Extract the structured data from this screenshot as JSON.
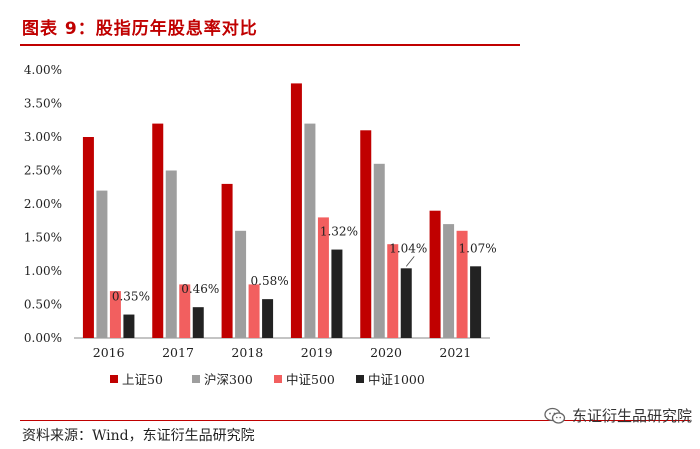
{
  "header": {
    "title": "图表 9：股指历年股息率对比"
  },
  "footer": {
    "source": "资料来源：Wind，东证衍生品研究院"
  },
  "watermark": {
    "text": "东证衍生品研究院",
    "icon": "wechat-icon"
  },
  "colors": {
    "title": "#c00000",
    "s1": "#c00000",
    "s2": "#9e9e9e",
    "s3": "#f25f5f",
    "s4": "#222222"
  },
  "chart_data": {
    "type": "bar",
    "title": "股指历年股息率对比",
    "categories": [
      "2016",
      "2017",
      "2018",
      "2019",
      "2020",
      "2021"
    ],
    "series": [
      {
        "name": "上证50",
        "color": "#c00000",
        "values": [
          3.0,
          3.2,
          2.3,
          3.8,
          3.1,
          1.9
        ]
      },
      {
        "name": "沪深300",
        "color": "#9e9e9e",
        "values": [
          2.2,
          2.5,
          1.6,
          3.2,
          2.6,
          1.7
        ]
      },
      {
        "name": "中证500",
        "color": "#f25f5f",
        "values": [
          0.7,
          0.8,
          0.8,
          1.8,
          1.4,
          1.6
        ]
      },
      {
        "name": "中证1000",
        "color": "#222222",
        "values": [
          0.35,
          0.46,
          0.58,
          1.32,
          1.04,
          1.07
        ]
      }
    ],
    "data_labels": [
      "0.35%",
      "0.46%",
      "0.58%",
      "1.32%",
      "1.04%",
      "1.07%"
    ],
    "y_ticks": [
      "0.00%",
      "0.50%",
      "1.00%",
      "1.50%",
      "2.00%",
      "2.50%",
      "3.00%",
      "3.50%",
      "4.00%"
    ],
    "ylim": [
      0,
      4.0
    ],
    "xlabel": "",
    "ylabel": "",
    "grid": false,
    "legend_position": "bottom"
  }
}
